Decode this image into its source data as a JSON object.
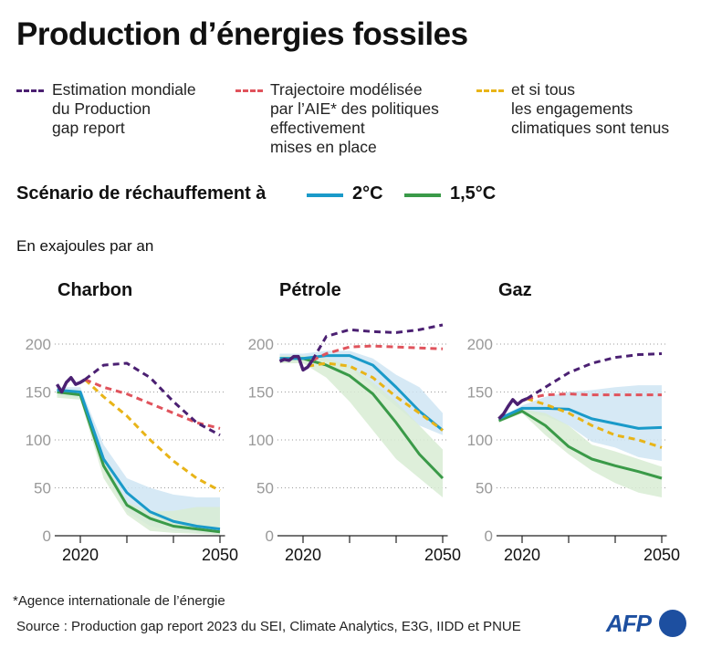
{
  "title": "Production d’énergies fossiles",
  "legend": {
    "gap": "Estimation mondiale\ndu Production\ngap report",
    "aie": "Trajectoire modélisée\npar l’AIE* des politiques\neffectivement\nmises en place",
    "engagements": "et si tous\nles engagements\nclimatiques sont tenus"
  },
  "scenario": {
    "label": "Scénario de réchauffement à",
    "s2": "2°C",
    "s15": "1,5°C"
  },
  "unit": "En exajoules par an",
  "footnote": "*Agence internationale de l’énergie",
  "source": "Source : Production gap report 2023 du SEI, Climate Analytics, E3G, IIDD et PNUE",
  "logo": "AFP",
  "colors": {
    "gap": "#4b2072",
    "aie": "#e0535c",
    "engagements": "#e8b418",
    "c2": "#1a9ac9",
    "c15": "#3a9a48",
    "band2": "#cfe5f3",
    "band15": "#d8ecd3"
  },
  "chart_data": [
    {
      "type": "line",
      "title": "Charbon",
      "ylim": [
        0,
        200
      ],
      "yticks": [
        0,
        50,
        100,
        150,
        200
      ],
      "xticks": [
        "2020",
        "2050"
      ],
      "grid": true,
      "years": [
        2015,
        2020,
        2025,
        2030,
        2035,
        2040,
        2045,
        2050
      ],
      "historical": {
        "x": [
          2015,
          2016,
          2017,
          2018,
          2019,
          2020,
          2021
        ],
        "y": [
          158,
          150,
          160,
          165,
          158,
          160,
          163
        ]
      },
      "gap": {
        "x": [
          2021,
          2025,
          2030,
          2035,
          2040,
          2045,
          2050
        ],
        "y": [
          163,
          178,
          180,
          165,
          140,
          118,
          105
        ]
      },
      "aie": {
        "x": [
          2021,
          2025,
          2030,
          2035,
          2040,
          2045,
          2050
        ],
        "y": [
          163,
          155,
          148,
          138,
          128,
          118,
          112
        ]
      },
      "engagements": {
        "x": [
          2021,
          2025,
          2030,
          2035,
          2040,
          2045,
          2050
        ],
        "y": [
          163,
          145,
          125,
          100,
          78,
          60,
          47
        ]
      },
      "c2": [
        152,
        150,
        80,
        45,
        25,
        15,
        10,
        7
      ],
      "c15": [
        150,
        147,
        73,
        32,
        18,
        10,
        7,
        4
      ],
      "band2": {
        "upper": [
          155,
          155,
          95,
          60,
          50,
          43,
          40,
          40
        ],
        "lower": [
          146,
          144,
          70,
          25,
          10,
          5,
          3,
          2
        ]
      },
      "band15": {
        "upper": [
          153,
          152,
          80,
          35,
          25,
          26,
          30,
          30
        ],
        "lower": [
          144,
          142,
          60,
          22,
          5,
          3,
          2,
          1
        ]
      }
    },
    {
      "type": "line",
      "title": "Pétrole",
      "ylim": [
        0,
        200
      ],
      "yticks": [
        0,
        50,
        100,
        150,
        200
      ],
      "xticks": [
        "2020",
        "2050"
      ],
      "grid": true,
      "years": [
        2015,
        2020,
        2025,
        2030,
        2035,
        2040,
        2045,
        2050
      ],
      "historical": {
        "x": [
          2015,
          2016,
          2017,
          2018,
          2019,
          2020,
          2021,
          2022
        ],
        "y": [
          182,
          184,
          183,
          187,
          187,
          173,
          176,
          183
        ]
      },
      "gap": {
        "x": [
          2022,
          2025,
          2030,
          2035,
          2040,
          2045,
          2050
        ],
        "y": [
          183,
          208,
          215,
          213,
          212,
          215,
          220
        ]
      },
      "aie": {
        "x": [
          2022,
          2025,
          2030,
          2035,
          2040,
          2045,
          2050
        ],
        "y": [
          183,
          190,
          197,
          198,
          197,
          196,
          195
        ]
      },
      "engagements": {
        "x": [
          2021,
          2025,
          2030,
          2035,
          2040,
          2045,
          2050
        ],
        "y": [
          177,
          180,
          177,
          165,
          145,
          128,
          110
        ]
      },
      "c2": [
        185,
        185,
        188,
        188,
        178,
        155,
        130,
        110
      ],
      "c15": [
        185,
        185,
        178,
        167,
        148,
        118,
        85,
        60
      ],
      "band2": {
        "upper": [
          190,
          190,
          193,
          193,
          185,
          168,
          155,
          128
        ],
        "lower": [
          182,
          182,
          182,
          175,
          155,
          135,
          115,
          105
        ]
      },
      "band15": {
        "upper": [
          188,
          188,
          185,
          178,
          160,
          140,
          115,
          90
        ],
        "lower": [
          180,
          180,
          165,
          140,
          110,
          80,
          60,
          40
        ]
      }
    },
    {
      "type": "line",
      "title": "Gaz",
      "ylim": [
        0,
        200
      ],
      "yticks": [
        0,
        50,
        100,
        150,
        200
      ],
      "xticks": [
        "2020",
        "2050"
      ],
      "grid": true,
      "years": [
        2015,
        2020,
        2025,
        2030,
        2035,
        2040,
        2045,
        2050
      ],
      "historical": {
        "x": [
          2015,
          2016,
          2017,
          2018,
          2019,
          2020,
          2021
        ],
        "y": [
          122,
          127,
          135,
          142,
          137,
          141,
          143
        ]
      },
      "gap": {
        "x": [
          2021,
          2025,
          2030,
          2035,
          2040,
          2045,
          2050
        ],
        "y": [
          143,
          155,
          170,
          180,
          186,
          189,
          190
        ]
      },
      "aie": {
        "x": [
          2021,
          2025,
          2030,
          2035,
          2040,
          2045,
          2050
        ],
        "y": [
          143,
          147,
          148,
          147,
          147,
          147,
          147
        ]
      },
      "engagements": {
        "x": [
          2021,
          2025,
          2030,
          2035,
          2040,
          2045,
          2050
        ],
        "y": [
          143,
          137,
          128,
          115,
          105,
          100,
          92
        ]
      },
      "c2": [
        122,
        133,
        133,
        132,
        122,
        117,
        112,
        113
      ],
      "c15": [
        120,
        130,
        115,
        93,
        80,
        73,
        67,
        60
      ],
      "band2": {
        "upper": [
          123,
          136,
          145,
          150,
          152,
          155,
          157,
          157
        ],
        "lower": [
          120,
          128,
          125,
          115,
          98,
          92,
          82,
          78
        ]
      },
      "band15": {
        "upper": [
          122,
          132,
          128,
          115,
          95,
          88,
          80,
          72
        ],
        "lower": [
          118,
          128,
          105,
          85,
          68,
          55,
          45,
          40
        ]
      }
    }
  ]
}
